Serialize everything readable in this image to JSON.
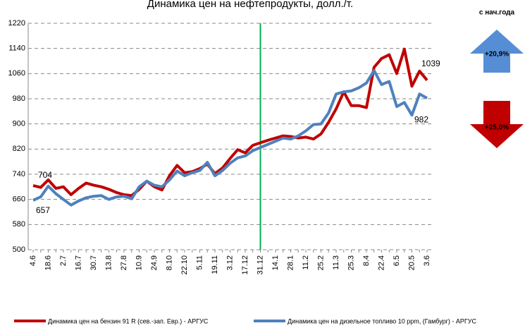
{
  "chart_data": {
    "type": "line",
    "title": "Динамика цен на нефтепродукты, долл./т.",
    "categories": [
      "4.6",
      null,
      "18.6",
      null,
      "2.7",
      null,
      "16.7",
      null,
      "30.7",
      null,
      "13.8",
      null,
      "27.8",
      null,
      "10.9",
      null,
      "24.9",
      null,
      "8.10",
      null,
      "22.10",
      null,
      "5.11",
      null,
      "19.11",
      null,
      "3.12",
      null,
      "17.12",
      null,
      "31.12",
      null,
      "14.1",
      null,
      "28.1",
      null,
      "11.2",
      null,
      "25.2",
      null,
      "11.3",
      null,
      "25.3",
      null,
      "8.4",
      null,
      "22.4",
      null,
      "6.5",
      null,
      "20.5",
      null,
      "3.6"
    ],
    "series": [
      {
        "name": "Динамика цен на бензин 91 R (сев.-зап. Евр.) - АРГУС",
        "color": "#c00000",
        "values": [
          704,
          698,
          722,
          695,
          700,
          675,
          695,
          712,
          705,
          700,
          692,
          682,
          675,
          672,
          692,
          718,
          700,
          690,
          735,
          768,
          745,
          748,
          758,
          772,
          742,
          760,
          790,
          818,
          808,
          832,
          840,
          848,
          855,
          862,
          860,
          855,
          858,
          852,
          868,
          905,
          948,
          1002,
          958,
          958,
          952,
          1080,
          1108,
          1120,
          1060,
          1138,
          1020,
          1068,
          1039
        ]
      },
      {
        "name": "Динамика цен на дизельное топливо 10 ppm,  (Гамбург) - АРГУС",
        "color": "#4f81bd",
        "values": [
          657,
          668,
          702,
          678,
          660,
          642,
          655,
          665,
          670,
          672,
          660,
          668,
          670,
          662,
          700,
          718,
          705,
          700,
          722,
          750,
          735,
          745,
          752,
          778,
          735,
          752,
          775,
          792,
          798,
          815,
          825,
          835,
          845,
          855,
          852,
          862,
          878,
          898,
          900,
          935,
          995,
          1002,
          1005,
          1015,
          1030,
          1070,
          1025,
          1035,
          955,
          968,
          928,
          995,
          982
        ]
      }
    ],
    "ylim": [
      500,
      1220
    ],
    "yticks": [
      500,
      580,
      660,
      740,
      820,
      900,
      980,
      1060,
      1140,
      1220
    ],
    "grid": true,
    "vline": {
      "category_index": 30,
      "color": "#00b050"
    },
    "ytd_title": "с нач.года",
    "ytd_series1": "+20,9%",
    "ytd_series0": "+25,0%"
  }
}
